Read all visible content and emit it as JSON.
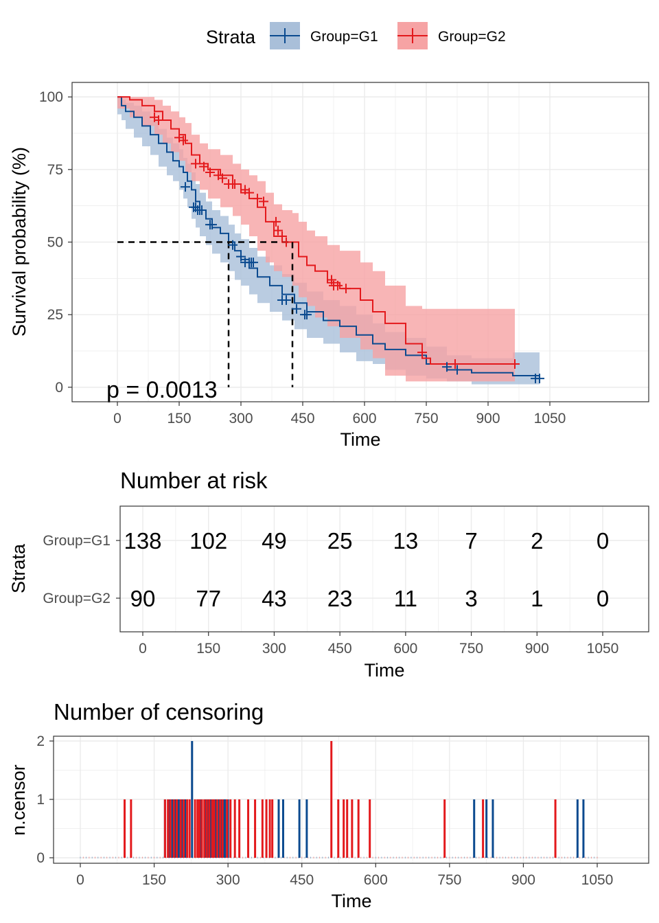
{
  "colors": {
    "G1": "#0b4a8f",
    "G2": "#e3191c",
    "G1_fill": "#a9bfd9",
    "G2_fill": "#f6a3a4",
    "grid": "#ebebeb",
    "frame": "#333333"
  },
  "legend": {
    "title": "Strata",
    "entries": [
      "Group=G1",
      "Group=G2"
    ]
  },
  "chart_data": [
    {
      "type": "line",
      "subtype": "kaplan-meier",
      "xlabel": "Time",
      "ylabel": "Survival probability (%)",
      "xlim": [
        -110,
        1290
      ],
      "ylim": [
        -5,
        105
      ],
      "xticks": [
        0,
        150,
        300,
        450,
        600,
        750,
        900,
        1050
      ],
      "xtick_labels": [
        "0",
        "150",
        "300",
        "450",
        "600",
        "750",
        "900",
        "1050"
      ],
      "yticks": [
        0,
        25,
        50,
        75,
        100
      ],
      "ytick_labels": [
        "0",
        "25",
        "50",
        "75",
        "100"
      ],
      "grid": true,
      "annotation": "p = 0.0013",
      "median_survival": {
        "level": 50,
        "G1": 270,
        "G2": 425
      },
      "series": [
        {
          "name": "Group=G1",
          "x": [
            0,
            10,
            20,
            40,
            60,
            80,
            100,
            120,
            135,
            150,
            160,
            170,
            180,
            190,
            200,
            215,
            230,
            250,
            270,
            285,
            300,
            320,
            340,
            370,
            400,
            430,
            460,
            500,
            540,
            580,
            620,
            650,
            700,
            750,
            800,
            860,
            960,
            1025
          ],
          "y": [
            100,
            97,
            95,
            93,
            90,
            87,
            84,
            81,
            78,
            76,
            74,
            71,
            68,
            64,
            61,
            58,
            55,
            53,
            50,
            47,
            44,
            41,
            38,
            35,
            32,
            29,
            26,
            23,
            21,
            18,
            15,
            13,
            11,
            8,
            6,
            5,
            4,
            4
          ],
          "lower": [
            100,
            94,
            92,
            89,
            86,
            83,
            80,
            76,
            73,
            71,
            68,
            65,
            62,
            58,
            55,
            52,
            49,
            46,
            43,
            40,
            37,
            35,
            32,
            29,
            26,
            23,
            20,
            17,
            15,
            12,
            9,
            8,
            6,
            4,
            3,
            2,
            1,
            1
          ],
          "upper": [
            100,
            99,
            98,
            97,
            95,
            92,
            89,
            86,
            84,
            82,
            79,
            77,
            74,
            70,
            67,
            64,
            61,
            59,
            56,
            53,
            51,
            48,
            45,
            42,
            39,
            36,
            33,
            30,
            28,
            25,
            22,
            19,
            17,
            14,
            11,
            10,
            12,
            12
          ],
          "censor_x": [
            165,
            185,
            190,
            195,
            200,
            205,
            225,
            230,
            280,
            300,
            310,
            320,
            325,
            330,
            400,
            410,
            435,
            455,
            460,
            800,
            825,
            1015,
            1025
          ],
          "censor_y": [
            69,
            62,
            62,
            61,
            61,
            61,
            56,
            56,
            49,
            45,
            43,
            43,
            43,
            43,
            30,
            30,
            27,
            25,
            25,
            7,
            6,
            3,
            3
          ]
        },
        {
          "name": "Group=G2",
          "x": [
            0,
            30,
            60,
            90,
            110,
            130,
            150,
            165,
            180,
            200,
            220,
            250,
            280,
            300,
            320,
            340,
            360,
            380,
            400,
            425,
            440,
            460,
            480,
            510,
            540,
            590,
            620,
            650,
            700,
            740,
            760,
            965
          ],
          "y": [
            100,
            99,
            97,
            95,
            92,
            89,
            87,
            84,
            80,
            77,
            75,
            73,
            70,
            67,
            65,
            62,
            57,
            52,
            50,
            50,
            45,
            42,
            40,
            36,
            34,
            30,
            26,
            22,
            15,
            10,
            8,
            8
          ],
          "lower": [
            100,
            96,
            93,
            90,
            87,
            84,
            81,
            78,
            74,
            71,
            68,
            65,
            62,
            59,
            56,
            52,
            47,
            43,
            40,
            38,
            35,
            31,
            28,
            24,
            21,
            17,
            13,
            10,
            4,
            2,
            2,
            2
          ],
          "upper": [
            100,
            100,
            100,
            99,
            97,
            95,
            93,
            91,
            87,
            84,
            82,
            80,
            77,
            75,
            73,
            71,
            67,
            63,
            61,
            60,
            57,
            54,
            52,
            49,
            47,
            43,
            40,
            35,
            28,
            27,
            27,
            27
          ],
          "censor_x": [
            90,
            100,
            150,
            160,
            190,
            210,
            225,
            245,
            255,
            270,
            280,
            285,
            310,
            320,
            340,
            355,
            385,
            390,
            400,
            410,
            520,
            525,
            535,
            555,
            740,
            820,
            965
          ],
          "censor_y": [
            93,
            92,
            86,
            85,
            77,
            76,
            74,
            73,
            72,
            70,
            70,
            70,
            68,
            67,
            65,
            64,
            57,
            54,
            52,
            50,
            37,
            35,
            35,
            34,
            12,
            8,
            8
          ]
        }
      ]
    },
    {
      "type": "table",
      "title": "Number at risk",
      "xlabel": "Time",
      "ylabel": "Strata",
      "xticks": [
        0,
        150,
        300,
        450,
        600,
        750,
        900,
        1050
      ],
      "xtick_labels": [
        "0",
        "150",
        "300",
        "450",
        "600",
        "750",
        "900",
        "1050"
      ],
      "rows": [
        {
          "name": "Group=G1",
          "values": [
            138,
            102,
            49,
            25,
            13,
            7,
            2,
            0
          ]
        },
        {
          "name": "Group=G2",
          "values": [
            90,
            77,
            43,
            23,
            11,
            3,
            1,
            0
          ]
        }
      ]
    },
    {
      "type": "bar",
      "title": "Number of censoring",
      "xlabel": "Time",
      "ylabel": "n.censor",
      "ylim": [
        0,
        2
      ],
      "yticks": [
        0,
        1,
        2
      ],
      "ytick_labels": [
        "0",
        "1",
        "2"
      ],
      "xticks": [
        0,
        150,
        300,
        450,
        600,
        750,
        900,
        1050
      ],
      "xtick_labels": [
        "0",
        "150",
        "300",
        "450",
        "600",
        "750",
        "900",
        "1050"
      ],
      "series": [
        {
          "name": "Group=G1",
          "x": [
            172,
            180,
            187,
            192,
            196,
            200,
            206,
            213,
            227,
            244,
            254,
            260,
            265,
            270,
            276,
            282,
            287,
            292,
            294,
            300,
            403,
            412,
            445,
            460,
            800,
            825,
            838,
            1010,
            1022
          ],
          "values": [
            1,
            1,
            1,
            1,
            1,
            1,
            1,
            1,
            2,
            1,
            1,
            1,
            1,
            1,
            1,
            1,
            1,
            1,
            1,
            1,
            1,
            1,
            1,
            1,
            1,
            1,
            1,
            1,
            1
          ]
        },
        {
          "name": "Group=G2",
          "x": [
            90,
            103,
            172,
            178,
            183,
            190,
            196,
            204,
            210,
            217,
            222,
            233,
            238,
            242,
            247,
            252,
            257,
            262,
            268,
            272,
            278,
            284,
            289,
            298,
            305,
            314,
            323,
            341,
            355,
            370,
            378,
            385,
            390,
            510,
            524,
            535,
            542,
            552,
            565,
            588,
            740,
            818,
            965
          ],
          "values": [
            1,
            1,
            1,
            1,
            1,
            1,
            1,
            1,
            1,
            1,
            1,
            1,
            1,
            1,
            1,
            1,
            1,
            1,
            1,
            1,
            1,
            1,
            1,
            1,
            1,
            1,
            1,
            1,
            1,
            1,
            1,
            1,
            1,
            2,
            1,
            1,
            1,
            1,
            1,
            1,
            1,
            1,
            1
          ]
        }
      ]
    }
  ]
}
